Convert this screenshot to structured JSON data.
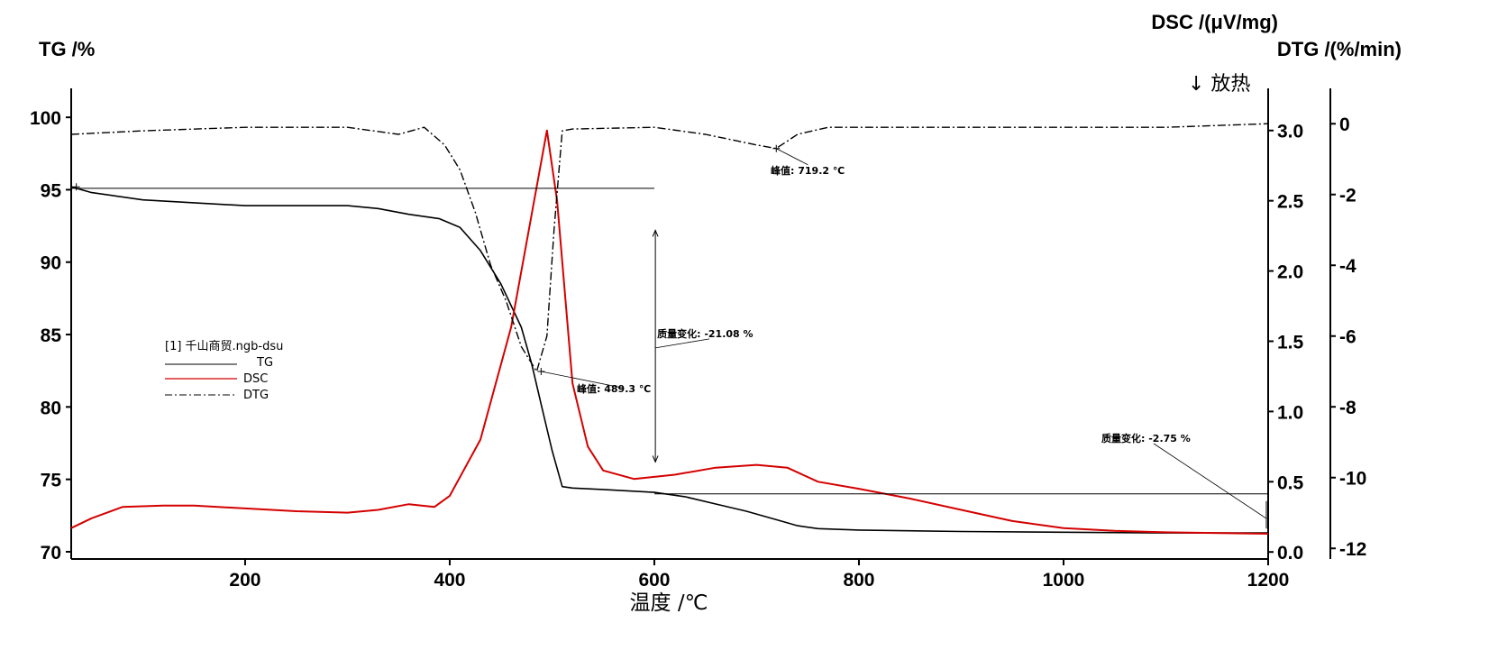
{
  "chart_data": {
    "type": "line",
    "xlabel": "温度 /℃",
    "exotherm_label": "↓ 放热",
    "x_axis": {
      "min": 30,
      "max": 1200,
      "ticks": [
        200,
        400,
        600,
        800,
        1000,
        1200
      ]
    },
    "axes": {
      "tg": {
        "label": "TG /%",
        "min": 69.5,
        "max": 102,
        "ticks": [
          70,
          75,
          80,
          85,
          90,
          95,
          100
        ]
      },
      "dsc": {
        "label": "DSC /(μV/mg)",
        "min": -0.05,
        "max": 3.3,
        "ticks": [
          "0.0",
          "0.5",
          "1.0",
          "1.5",
          "2.0",
          "2.5",
          "3.0"
        ]
      },
      "dtg": {
        "label": "DTG /(%/min)",
        "min": -12.3,
        "max": 1.0,
        "ticks": [
          0,
          -2,
          -4,
          -6,
          -8,
          -10,
          -12
        ]
      }
    },
    "legend": {
      "title": "[1] 千山商贸.ngb-dsu",
      "entries": [
        {
          "name": "TG",
          "color": "#000000",
          "dash": "solid"
        },
        {
          "name": "DSC",
          "color": "#d40000",
          "dash": "solid"
        },
        {
          "name": "DTG",
          "color": "#000000",
          "dash": "dash-dot"
        }
      ]
    },
    "series": [
      {
        "name": "TG",
        "axis": "tg",
        "points": [
          [
            30,
            95.2
          ],
          [
            50,
            94.8
          ],
          [
            100,
            94.3
          ],
          [
            150,
            94.1
          ],
          [
            200,
            93.9
          ],
          [
            250,
            93.9
          ],
          [
            300,
            93.9
          ],
          [
            330,
            93.7
          ],
          [
            360,
            93.3
          ],
          [
            390,
            93.0
          ],
          [
            410,
            92.4
          ],
          [
            430,
            90.8
          ],
          [
            450,
            88.5
          ],
          [
            470,
            85.5
          ],
          [
            480,
            83.0
          ],
          [
            490,
            80.0
          ],
          [
            500,
            77.0
          ],
          [
            510,
            74.5
          ],
          [
            520,
            74.4
          ],
          [
            550,
            74.3
          ],
          [
            600,
            74.1
          ],
          [
            630,
            73.8
          ],
          [
            660,
            73.3
          ],
          [
            690,
            72.8
          ],
          [
            720,
            72.2
          ],
          [
            740,
            71.8
          ],
          [
            760,
            71.6
          ],
          [
            800,
            71.5
          ],
          [
            900,
            71.4
          ],
          [
            1000,
            71.35
          ],
          [
            1100,
            71.3
          ],
          [
            1200,
            71.3
          ]
        ]
      },
      {
        "name": "DSC",
        "axis": "dsc",
        "points": [
          [
            30,
            0.17
          ],
          [
            50,
            0.24
          ],
          [
            80,
            0.32
          ],
          [
            120,
            0.33
          ],
          [
            150,
            0.33
          ],
          [
            200,
            0.31
          ],
          [
            250,
            0.29
          ],
          [
            300,
            0.28
          ],
          [
            330,
            0.3
          ],
          [
            360,
            0.34
          ],
          [
            385,
            0.32
          ],
          [
            400,
            0.4
          ],
          [
            430,
            0.8
          ],
          [
            460,
            1.6
          ],
          [
            480,
            2.4
          ],
          [
            495,
            3.0
          ],
          [
            505,
            2.5
          ],
          [
            520,
            1.2
          ],
          [
            535,
            0.75
          ],
          [
            550,
            0.58
          ],
          [
            580,
            0.52
          ],
          [
            620,
            0.55
          ],
          [
            660,
            0.6
          ],
          [
            700,
            0.62
          ],
          [
            730,
            0.6
          ],
          [
            760,
            0.5
          ],
          [
            800,
            0.45
          ],
          [
            850,
            0.38
          ],
          [
            900,
            0.3
          ],
          [
            950,
            0.22
          ],
          [
            1000,
            0.17
          ],
          [
            1050,
            0.15
          ],
          [
            1100,
            0.14
          ],
          [
            1200,
            0.13
          ]
        ]
      },
      {
        "name": "DTG",
        "axis": "dtg",
        "points": [
          [
            30,
            -0.3
          ],
          [
            100,
            -0.2
          ],
          [
            200,
            -0.1
          ],
          [
            300,
            -0.1
          ],
          [
            350,
            -0.3
          ],
          [
            375,
            -0.1
          ],
          [
            395,
            -0.6
          ],
          [
            410,
            -1.3
          ],
          [
            425,
            -2.5
          ],
          [
            440,
            -4.0
          ],
          [
            455,
            -5.0
          ],
          [
            470,
            -6.3
          ],
          [
            485,
            -7.0
          ],
          [
            495,
            -6.0
          ],
          [
            502,
            -3.0
          ],
          [
            510,
            -0.2
          ],
          [
            520,
            -0.15
          ],
          [
            600,
            -0.1
          ],
          [
            650,
            -0.3
          ],
          [
            700,
            -0.6
          ],
          [
            719,
            -0.7
          ],
          [
            740,
            -0.3
          ],
          [
            770,
            -0.1
          ],
          [
            900,
            -0.1
          ],
          [
            1100,
            -0.1
          ],
          [
            1200,
            0.0
          ]
        ]
      }
    ],
    "annotations": [
      {
        "text": "峰值: 719.2 ℃",
        "x": 719.2,
        "series": "DTG"
      },
      {
        "text": "峰值: 489.3 ℃",
        "x": 489.3,
        "series": "DTG"
      },
      {
        "text": "质量变化: -21.08 %",
        "from_tg": 95.1,
        "to_tg": 74.0
      },
      {
        "text": "质量变化: -2.75 %",
        "from_tg": 74.0,
        "to_tg": 71.3
      }
    ]
  }
}
